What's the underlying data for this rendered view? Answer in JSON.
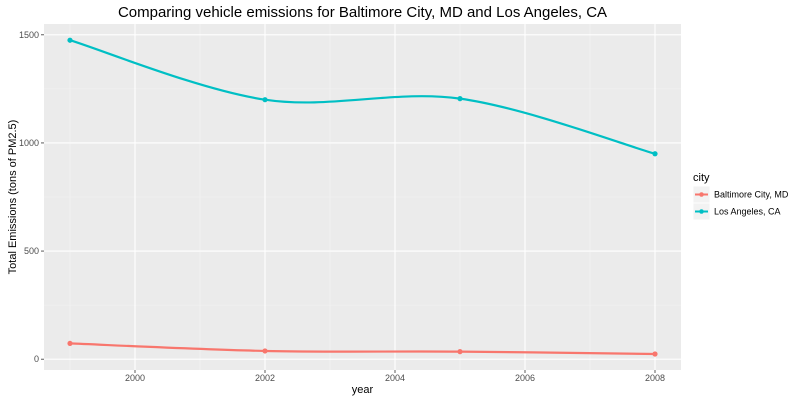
{
  "chart_data": {
    "type": "line",
    "title": "Comparing vehicle emissions for Baltimore City, MD and Los Angeles, CA",
    "xlabel": "year",
    "ylabel": "Total Emissions (tons of PM2.5)",
    "x": [
      1999,
      2002,
      2005,
      2008
    ],
    "xlim": [
      1998.6,
      2008.4
    ],
    "ylim": [
      -50,
      1550
    ],
    "x_ticks": [
      2000,
      2002,
      2004,
      2006,
      2008
    ],
    "y_ticks": [
      0,
      500,
      1000,
      1500
    ],
    "grid": true,
    "legend": {
      "title": "city",
      "placement": "right"
    },
    "series": [
      {
        "name": "Baltimore City, MD",
        "color": "#F8766D",
        "values": [
          73,
          38,
          35,
          24
        ]
      },
      {
        "name": "Los Angeles, CA",
        "color": "#00BFC4",
        "values": [
          1475,
          1200,
          1205,
          950
        ]
      }
    ]
  },
  "colors": {
    "panel_background": "#EBEBEB",
    "grid_major": "#FFFFFF",
    "grid_minor": "#F4F4F4"
  }
}
